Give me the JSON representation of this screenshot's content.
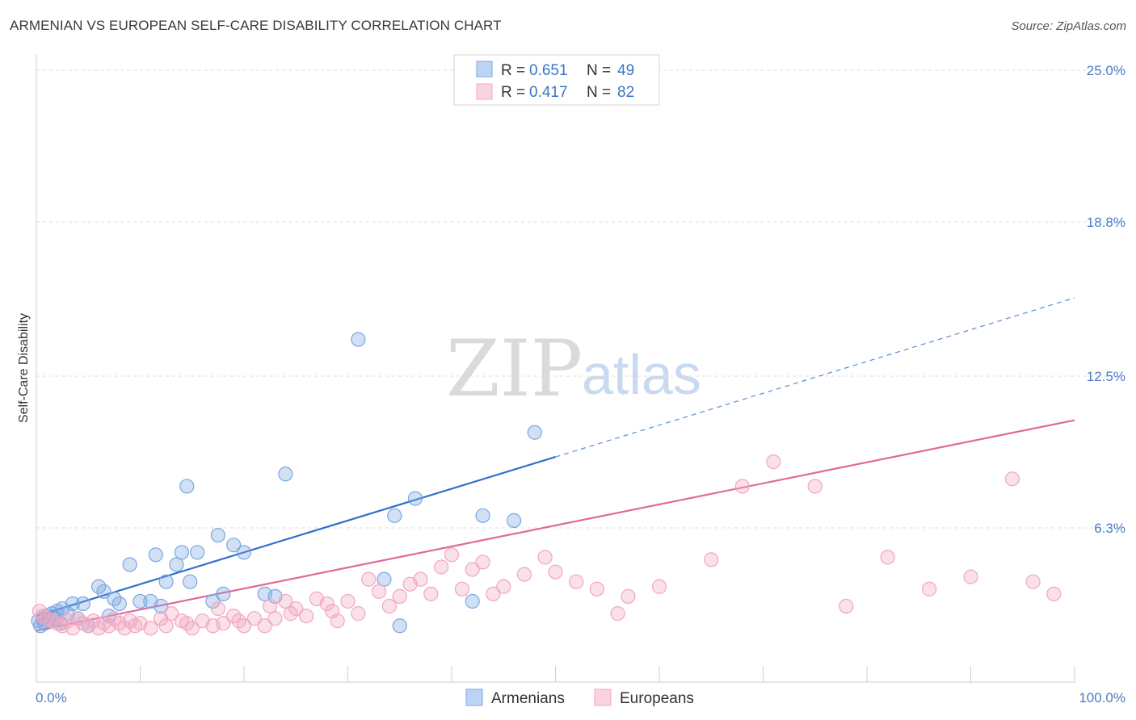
{
  "title": "ARMENIAN VS EUROPEAN SELF-CARE DISABILITY CORRELATION CHART",
  "source": "Source: ZipAtlas.com",
  "watermark": {
    "part1": "ZIP",
    "part2": "atlas"
  },
  "chart_data": {
    "type": "scatter",
    "ylabel": "Self-Care Disability",
    "xlim": [
      0,
      100
    ],
    "ylim": [
      0,
      25
    ],
    "x_tick_labels": {
      "left": "0.0%",
      "right": "100.0%"
    },
    "y_ticks": [
      {
        "value": 6.3,
        "label": "6.3%"
      },
      {
        "value": 12.5,
        "label": "12.5%"
      },
      {
        "value": 18.8,
        "label": "18.8%"
      },
      {
        "value": 25.0,
        "label": "25.0%"
      }
    ],
    "grid": "horizontal dashed",
    "legend_placement": "top-center",
    "series": [
      {
        "name": "Armenians",
        "legend_label": "Armenians",
        "r_label": "R =",
        "r_value": "0.651",
        "n_label": "N =",
        "n_value": "49",
        "color": "#7aa7e0",
        "line_color": "#2f6fcc",
        "trend": {
          "x0": 0,
          "y0": 2.7,
          "x1": 50,
          "y1": 9.2,
          "dash_to_x": 100,
          "dash_to_y": 15.7
        },
        "points": [
          [
            0.2,
            2.5
          ],
          [
            0.4,
            2.3
          ],
          [
            0.6,
            2.6
          ],
          [
            0.8,
            2.4
          ],
          [
            1.0,
            2.7
          ],
          [
            1.2,
            2.5
          ],
          [
            1.5,
            2.8
          ],
          [
            1.8,
            2.6
          ],
          [
            2.0,
            2.9
          ],
          [
            2.3,
            2.4
          ],
          [
            2.5,
            3.0
          ],
          [
            3.0,
            2.8
          ],
          [
            3.5,
            3.2
          ],
          [
            4.0,
            2.6
          ],
          [
            4.5,
            3.2
          ],
          [
            5.0,
            2.3
          ],
          [
            6.0,
            3.9
          ],
          [
            6.5,
            3.7
          ],
          [
            7.0,
            2.7
          ],
          [
            7.5,
            3.4
          ],
          [
            8.0,
            3.2
          ],
          [
            9.0,
            4.8
          ],
          [
            10.0,
            3.3
          ],
          [
            11.0,
            3.3
          ],
          [
            11.5,
            5.2
          ],
          [
            12.0,
            3.1
          ],
          [
            12.5,
            4.1
          ],
          [
            13.5,
            4.8
          ],
          [
            14.0,
            5.3
          ],
          [
            14.5,
            8.0
          ],
          [
            14.8,
            4.1
          ],
          [
            15.5,
            5.3
          ],
          [
            17.0,
            3.3
          ],
          [
            17.5,
            6.0
          ],
          [
            18.0,
            3.6
          ],
          [
            19.0,
            5.6
          ],
          [
            20.0,
            5.3
          ],
          [
            22.0,
            3.6
          ],
          [
            23.0,
            3.5
          ],
          [
            24.0,
            8.5
          ],
          [
            31.0,
            14.0
          ],
          [
            33.5,
            4.2
          ],
          [
            34.5,
            6.8
          ],
          [
            35.0,
            2.3
          ],
          [
            36.5,
            7.5
          ],
          [
            42.0,
            3.3
          ],
          [
            43.0,
            6.8
          ],
          [
            46.0,
            6.6
          ],
          [
            48.0,
            10.2
          ]
        ]
      },
      {
        "name": "Europeans",
        "legend_label": "Europeans",
        "r_label": "R =",
        "r_value": "0.417",
        "n_label": "N =",
        "n_value": "82",
        "color": "#f2a6bf",
        "line_color": "#e06a97",
        "trend": {
          "x0": 0,
          "y0": 2.1,
          "x1": 100,
          "y1": 10.7
        },
        "points": [
          [
            0.3,
            2.9
          ],
          [
            0.6,
            2.7
          ],
          [
            1.0,
            2.6
          ],
          [
            1.5,
            2.5
          ],
          [
            2.0,
            2.4
          ],
          [
            2.5,
            2.3
          ],
          [
            3.0,
            2.5
          ],
          [
            3.5,
            2.2
          ],
          [
            4.0,
            2.6
          ],
          [
            4.5,
            2.4
          ],
          [
            5.0,
            2.3
          ],
          [
            5.5,
            2.5
          ],
          [
            6.0,
            2.2
          ],
          [
            6.5,
            2.4
          ],
          [
            7.0,
            2.3
          ],
          [
            7.5,
            2.6
          ],
          [
            8.0,
            2.4
          ],
          [
            8.5,
            2.2
          ],
          [
            9.0,
            2.5
          ],
          [
            9.5,
            2.3
          ],
          [
            10.0,
            2.4
          ],
          [
            11.0,
            2.2
          ],
          [
            12.0,
            2.6
          ],
          [
            12.5,
            2.3
          ],
          [
            13.0,
            2.8
          ],
          [
            14.0,
            2.5
          ],
          [
            14.5,
            2.4
          ],
          [
            15.0,
            2.2
          ],
          [
            16.0,
            2.5
          ],
          [
            17.0,
            2.3
          ],
          [
            17.5,
            3.0
          ],
          [
            18.0,
            2.4
          ],
          [
            19.0,
            2.7
          ],
          [
            19.5,
            2.5
          ],
          [
            20.0,
            2.3
          ],
          [
            21.0,
            2.6
          ],
          [
            22.0,
            2.3
          ],
          [
            22.5,
            3.1
          ],
          [
            23.0,
            2.6
          ],
          [
            24.0,
            3.3
          ],
          [
            24.5,
            2.8
          ],
          [
            25.0,
            3.0
          ],
          [
            26.0,
            2.7
          ],
          [
            27.0,
            3.4
          ],
          [
            28.0,
            3.2
          ],
          [
            28.5,
            2.9
          ],
          [
            29.0,
            2.5
          ],
          [
            30.0,
            3.3
          ],
          [
            31.0,
            2.8
          ],
          [
            32.0,
            4.2
          ],
          [
            33.0,
            3.7
          ],
          [
            34.0,
            3.1
          ],
          [
            35.0,
            3.5
          ],
          [
            36.0,
            4.0
          ],
          [
            37.0,
            4.2
          ],
          [
            38.0,
            3.6
          ],
          [
            39.0,
            4.7
          ],
          [
            40.0,
            5.2
          ],
          [
            41.0,
            3.8
          ],
          [
            42.0,
            4.6
          ],
          [
            43.0,
            4.9
          ],
          [
            44.0,
            3.6
          ],
          [
            45.0,
            3.9
          ],
          [
            47.0,
            4.4
          ],
          [
            49.0,
            5.1
          ],
          [
            50.0,
            4.5
          ],
          [
            52.0,
            4.1
          ],
          [
            54.0,
            3.8
          ],
          [
            56.0,
            2.8
          ],
          [
            57.0,
            3.5
          ],
          [
            60.0,
            3.9
          ],
          [
            65.0,
            5.0
          ],
          [
            68.0,
            8.0
          ],
          [
            71.0,
            9.0
          ],
          [
            75.0,
            8.0
          ],
          [
            78.0,
            3.1
          ],
          [
            82.0,
            5.1
          ],
          [
            86.0,
            3.8
          ],
          [
            90.0,
            4.3
          ],
          [
            94.0,
            8.3
          ],
          [
            96.0,
            4.1
          ],
          [
            98.0,
            3.6
          ]
        ]
      }
    ]
  }
}
